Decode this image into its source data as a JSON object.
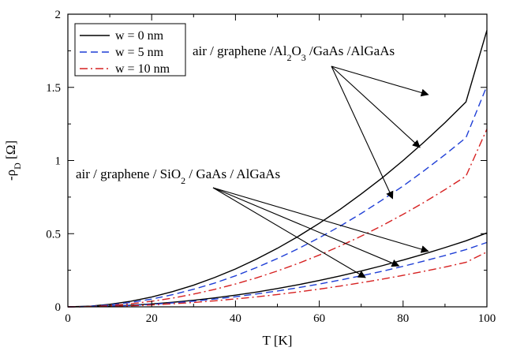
{
  "chart_data": {
    "type": "line",
    "xlabel": "T [K]",
    "ylabel_main": "-ρ",
    "ylabel_sub": "D",
    "ylabel_unit": " [Ω]",
    "xlim": [
      0,
      100
    ],
    "ylim": [
      0,
      2
    ],
    "xticks": [
      0,
      20,
      40,
      60,
      80,
      100
    ],
    "yticks": [
      0,
      0.5,
      1,
      1.5,
      2
    ],
    "xtick_labels": [
      "0",
      "20",
      "40",
      "60",
      "80",
      "100"
    ],
    "ytick_labels": [
      "0",
      "0.5",
      "1",
      "1.5",
      "2"
    ],
    "grid": false,
    "legend_position": "top-left",
    "x": [
      0,
      5,
      10,
      15,
      20,
      25,
      30,
      35,
      40,
      45,
      50,
      55,
      60,
      65,
      70,
      75,
      80,
      85,
      90,
      95,
      100
    ],
    "series": [
      {
        "name": "w = 0 nm",
        "group": "al2o3",
        "color": "#000000",
        "dash": "solid",
        "values": [
          0,
          0.004,
          0.017,
          0.038,
          0.067,
          0.104,
          0.148,
          0.2,
          0.259,
          0.326,
          0.4,
          0.482,
          0.571,
          0.667,
          0.771,
          0.881,
          1.0,
          1.126,
          1.259,
          1.4,
          1.89
        ]
      },
      {
        "name": "w = 5 nm",
        "group": "al2o3",
        "color": "#1f3fd6",
        "dash": "dashed",
        "values": [
          0,
          0.003,
          0.013,
          0.03,
          0.053,
          0.083,
          0.12,
          0.162,
          0.212,
          0.268,
          0.33,
          0.398,
          0.472,
          0.552,
          0.638,
          0.73,
          0.826,
          0.93,
          1.04,
          1.156,
          1.51
        ]
      },
      {
        "name": "w = 10 nm",
        "group": "al2o3",
        "color": "#d62020",
        "dash": "dashdot",
        "values": [
          0,
          0.002,
          0.009,
          0.021,
          0.038,
          0.06,
          0.087,
          0.119,
          0.156,
          0.198,
          0.245,
          0.297,
          0.354,
          0.416,
          0.483,
          0.555,
          0.632,
          0.714,
          0.801,
          0.893,
          1.215
        ]
      },
      {
        "name": "w = 0 nm",
        "group": "sio2",
        "color": "#000000",
        "dash": "solid",
        "values": [
          0,
          0.001,
          0.005,
          0.011,
          0.02,
          0.031,
          0.045,
          0.061,
          0.08,
          0.101,
          0.125,
          0.151,
          0.18,
          0.211,
          0.245,
          0.281,
          0.32,
          0.361,
          0.405,
          0.451,
          0.505
        ]
      },
      {
        "name": "w = 5 nm",
        "group": "sio2",
        "color": "#1f3fd6",
        "dash": "dashed",
        "values": [
          0,
          0.001,
          0.004,
          0.009,
          0.017,
          0.027,
          0.039,
          0.053,
          0.069,
          0.088,
          0.108,
          0.131,
          0.156,
          0.183,
          0.212,
          0.243,
          0.277,
          0.313,
          0.351,
          0.391,
          0.44
        ]
      },
      {
        "name": "w = 10 nm",
        "group": "sio2",
        "color": "#d62020",
        "dash": "dashdot",
        "values": [
          0,
          0.001,
          0.003,
          0.007,
          0.013,
          0.021,
          0.03,
          0.041,
          0.054,
          0.068,
          0.084,
          0.102,
          0.121,
          0.142,
          0.165,
          0.189,
          0.215,
          0.243,
          0.272,
          0.304,
          0.375
        ]
      }
    ],
    "legend": [
      {
        "label": "w = 0 nm",
        "color": "#000000",
        "dash": "solid"
      },
      {
        "label": "w = 5 nm",
        "color": "#1f3fd6",
        "dash": "dashed"
      },
      {
        "label": "w = 10 nm",
        "color": "#d62020",
        "dash": "dashdot"
      }
    ],
    "annotations": [
      {
        "id": "al2o3",
        "parts": [
          "air / graphene /Al",
          "2",
          "O",
          "3",
          " /GaAs /AlGaAs"
        ],
        "arrow_targets": [
          [
            86,
            1.45
          ],
          [
            84,
            1.09
          ],
          [
            77.5,
            0.74
          ]
        ]
      },
      {
        "id": "sio2",
        "parts": [
          "air / graphene / SiO",
          "2",
          " / GaAs / AlGaAs"
        ],
        "arrow_targets": [
          [
            86,
            0.38
          ],
          [
            79,
            0.28
          ],
          [
            71,
            0.2
          ]
        ]
      }
    ]
  }
}
